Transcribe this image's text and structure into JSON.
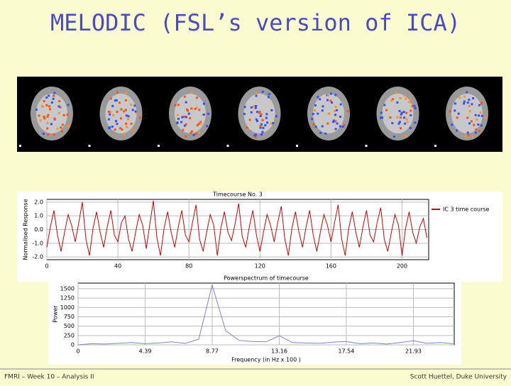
{
  "title": "MELODIC (FSL’s version of ICA)",
  "footer": {
    "left": "FMRI – Week 10 – Analysis II",
    "right": "Scott Huettel, Duke University"
  },
  "chart_data": [
    {
      "type": "line",
      "title": "Timecourse No. 3",
      "ylabel": "Normalised Response",
      "x": [
        0,
        2,
        4,
        6,
        8,
        10,
        12,
        14,
        16,
        18,
        20,
        22,
        24,
        26,
        28,
        30,
        32,
        34,
        36,
        38,
        40,
        42,
        44,
        46,
        48,
        50,
        52,
        54,
        56,
        58,
        60,
        62,
        64,
        66,
        68,
        70,
        72,
        74,
        76,
        78,
        80,
        82,
        84,
        86,
        88,
        90,
        92,
        94,
        96,
        98,
        100,
        102,
        104,
        106,
        108,
        110,
        112,
        114,
        116,
        118,
        120,
        122,
        124,
        126,
        128,
        130,
        132,
        134,
        136,
        138,
        140,
        142,
        144,
        146,
        148,
        150,
        152,
        154,
        156,
        158,
        160,
        162,
        164,
        166,
        168,
        170,
        172,
        174,
        176,
        178,
        180,
        182,
        184,
        186,
        188,
        190,
        192,
        194,
        196,
        198,
        200,
        202,
        204,
        206,
        208,
        210,
        212,
        214
      ],
      "series": [
        {
          "name": "IC 3 time course",
          "color": "#cc0000",
          "values": [
            -1.3,
            0.2,
            1.4,
            -0.4,
            -1.6,
            -0.2,
            1.1,
            0.3,
            -0.9,
            0.5,
            2.0,
            -0.7,
            -1.9,
            0.1,
            1.3,
            -0.2,
            -1.3,
            0.2,
            1.4,
            -0.4,
            -0.9,
            0.5,
            1.0,
            -0.7,
            -1.6,
            -0.2,
            1.1,
            0.3,
            -1.4,
            0.4,
            2.1,
            -0.6,
            -1.9,
            0.1,
            1.3,
            -0.2,
            -1.3,
            0.2,
            1.4,
            -0.4,
            -0.9,
            0.5,
            1.8,
            -0.7,
            -1.6,
            -0.2,
            1.1,
            0.3,
            -1.9,
            0.1,
            1.3,
            -0.2,
            -0.8,
            0.4,
            1.9,
            -0.5,
            -1.3,
            0.2,
            1.4,
            -0.4,
            -1.6,
            -0.2,
            1.1,
            0.3,
            -0.9,
            0.5,
            1.7,
            -0.7,
            -1.9,
            0.1,
            1.3,
            -0.2,
            -1.3,
            0.2,
            1.4,
            -0.4,
            -1.6,
            -0.2,
            1.1,
            0.3,
            -0.9,
            0.5,
            1.8,
            -0.7,
            -1.9,
            0.1,
            1.3,
            -0.2,
            -1.3,
            0.2,
            1.4,
            -0.4,
            -0.9,
            0.5,
            1.6,
            -0.7,
            -1.6,
            -0.2,
            1.1,
            0.3,
            -1.9,
            0.1,
            1.3,
            -0.2,
            -1.0,
            0.2,
            0.8,
            -0.6
          ]
        }
      ],
      "xlim": [
        0,
        215
      ],
      "xticks": [
        0,
        40,
        80,
        120,
        160,
        200
      ],
      "ylim": [
        -2.2,
        2.2
      ],
      "yticks": [
        {
          "value": -2,
          "label": "-2.0"
        },
        {
          "value": -1,
          "label": "-1.0"
        },
        {
          "value": 0,
          "label": "0.0"
        },
        {
          "value": 1,
          "label": "1.0"
        },
        {
          "value": 2,
          "label": "2.0"
        }
      ],
      "grid": true,
      "legend": "right"
    },
    {
      "type": "line",
      "title": "Powerspectrum of timecourse",
      "xlabel": "Frequency (in Hz x 100 )",
      "ylabel": "Power",
      "x": [
        0,
        0.88,
        1.75,
        2.63,
        3.51,
        4.39,
        5.26,
        6.14,
        7.02,
        7.89,
        8.77,
        9.65,
        10.52,
        11.4,
        12.28,
        13.16,
        14.03,
        14.91,
        15.79,
        16.66,
        17.54,
        18.42,
        19.29,
        20.17,
        21.05,
        21.93,
        22.8,
        23.68,
        24.56
      ],
      "series": [
        {
          "name": "Power",
          "color": "#8080d0",
          "values": [
            0,
            30,
            20,
            40,
            60,
            30,
            50,
            80,
            40,
            150,
            1600,
            380,
            120,
            90,
            80,
            240,
            60,
            50,
            40,
            70,
            90,
            30,
            50,
            20,
            60,
            110,
            40,
            60,
            30
          ]
        }
      ],
      "xlim": [
        0,
        24.6
      ],
      "xticks": [
        0,
        4.39,
        8.77,
        13.16,
        17.54,
        21.93
      ],
      "ylim": [
        0,
        1650
      ],
      "yticks": [
        0,
        250,
        500,
        750,
        1000,
        1250,
        1500
      ],
      "grid": true
    }
  ]
}
